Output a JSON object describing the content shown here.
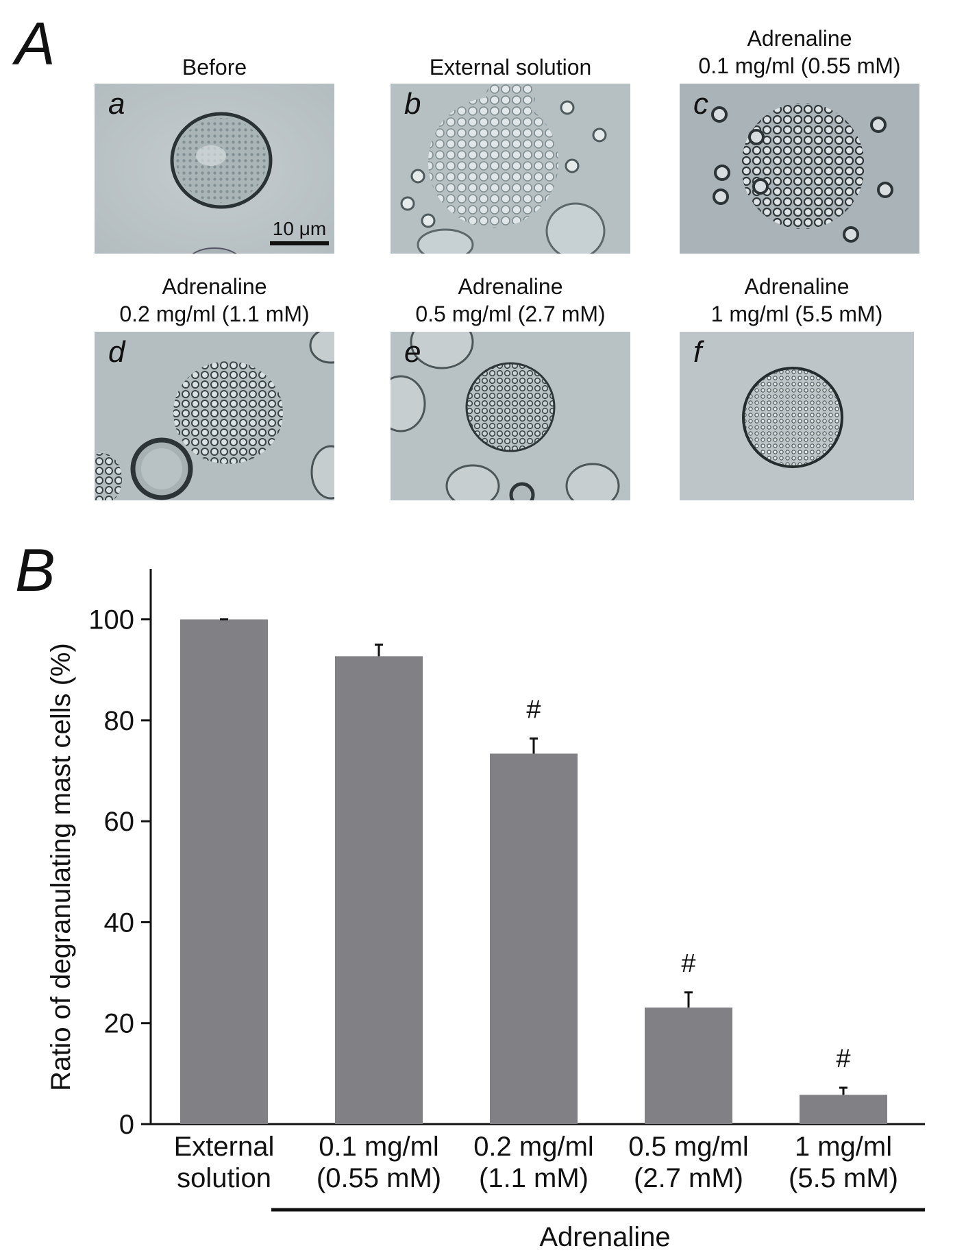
{
  "panelA": {
    "letter": "A",
    "images": [
      {
        "caption_lines": [
          "Before"
        ],
        "sub": "a",
        "scale": "10 μm"
      },
      {
        "caption_lines": [
          "External solution"
        ],
        "sub": "b"
      },
      {
        "caption_lines": [
          "Adrenaline",
          "0.1 mg/ml (0.55 mM)"
        ],
        "sub": "c"
      },
      {
        "caption_lines": [
          "Adrenaline",
          "0.2 mg/ml (1.1 mM)"
        ],
        "sub": "d"
      },
      {
        "caption_lines": [
          "Adrenaline",
          "0.5 mg/ml (2.7 mM)"
        ],
        "sub": "e"
      },
      {
        "caption_lines": [
          "Adrenaline",
          "1 mg/ml (5.5 mM)"
        ],
        "sub": "f"
      }
    ]
  },
  "panelB": {
    "letter": "B",
    "chart_data": {
      "type": "bar",
      "ylabel": "Ratio of degranulating mast cells (%)",
      "ylim": [
        0,
        110
      ],
      "yticks": [
        0,
        20,
        40,
        60,
        80,
        100
      ],
      "categories": [
        [
          "External",
          "solution"
        ],
        [
          "0.1 mg/ml",
          "(0.55 mM)"
        ],
        [
          "0.2 mg/ml",
          "(1.1 mM)"
        ],
        [
          "0.5 mg/ml",
          "(2.7 mM)"
        ],
        [
          "1 mg/ml",
          "(5.5 mM)"
        ]
      ],
      "values": [
        100,
        92.7,
        73.4,
        23.1,
        5.8
      ],
      "errors": [
        0,
        2.3,
        3.0,
        3.0,
        1.4
      ],
      "significance": [
        "",
        "",
        "#",
        "#",
        "#"
      ],
      "group_label": "Adrenaline",
      "bar_color": "#808085"
    }
  }
}
